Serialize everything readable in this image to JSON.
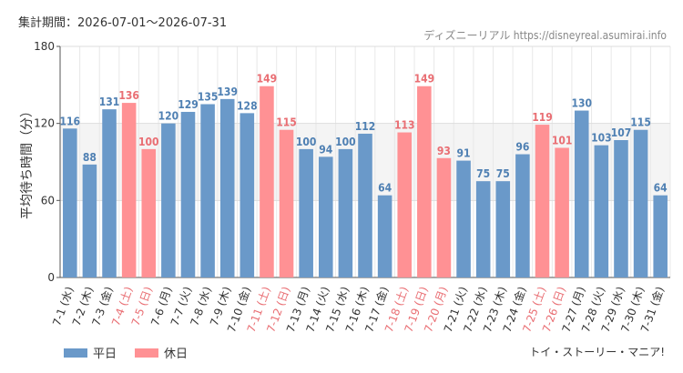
{
  "header": {
    "period": "集計期間：2026-07-01～2026-07-31",
    "credit": "ディズニーリアル https://disneyreal.asumirai.info"
  },
  "footer": {
    "attraction": "トイ・ストーリー・マニア!"
  },
  "colors": {
    "weekday": "#6a99c9",
    "holiday": "#ff9194",
    "weekday_text": "#4f80b3",
    "holiday_text": "#e96e73",
    "band": "#f4f4f4"
  },
  "chart_data": {
    "type": "bar",
    "ylabel": "平均待ち時間（分）",
    "ylim": [
      0,
      180
    ],
    "yticks": [
      0,
      60,
      120,
      180
    ],
    "grid": true,
    "legend_position": "bottom-left",
    "legend": [
      {
        "name": "平日",
        "key": "weekday"
      },
      {
        "name": "休日",
        "key": "holiday"
      }
    ],
    "categories": [
      "7-1 (水)",
      "7-2 (木)",
      "7-3 (金)",
      "7-4 (土)",
      "7-5 (日)",
      "7-6 (月)",
      "7-7 (火)",
      "7-8 (水)",
      "7-9 (木)",
      "7-10 (金)",
      "7-11 (土)",
      "7-12 (日)",
      "7-13 (月)",
      "7-14 (火)",
      "7-15 (水)",
      "7-16 (木)",
      "7-17 (金)",
      "7-18 (土)",
      "7-19 (日)",
      "7-20 (月)",
      "7-21 (火)",
      "7-22 (水)",
      "7-23 (木)",
      "7-24 (金)",
      "7-25 (土)",
      "7-26 (日)",
      "7-27 (月)",
      "7-28 (火)",
      "7-29 (水)",
      "7-30 (木)",
      "7-31 (金)"
    ],
    "values": [
      116,
      88,
      131,
      136,
      100,
      120,
      129,
      135,
      139,
      128,
      149,
      115,
      100,
      94,
      100,
      112,
      64,
      113,
      149,
      93,
      91,
      75,
      75,
      96,
      119,
      101,
      130,
      103,
      107,
      115,
      64
    ],
    "day_type": [
      "weekday",
      "weekday",
      "weekday",
      "holiday",
      "holiday",
      "weekday",
      "weekday",
      "weekday",
      "weekday",
      "weekday",
      "holiday",
      "holiday",
      "weekday",
      "weekday",
      "weekday",
      "weekday",
      "weekday",
      "holiday",
      "holiday",
      "holiday",
      "weekday",
      "weekday",
      "weekday",
      "weekday",
      "holiday",
      "holiday",
      "weekday",
      "weekday",
      "weekday",
      "weekday",
      "weekday"
    ]
  }
}
